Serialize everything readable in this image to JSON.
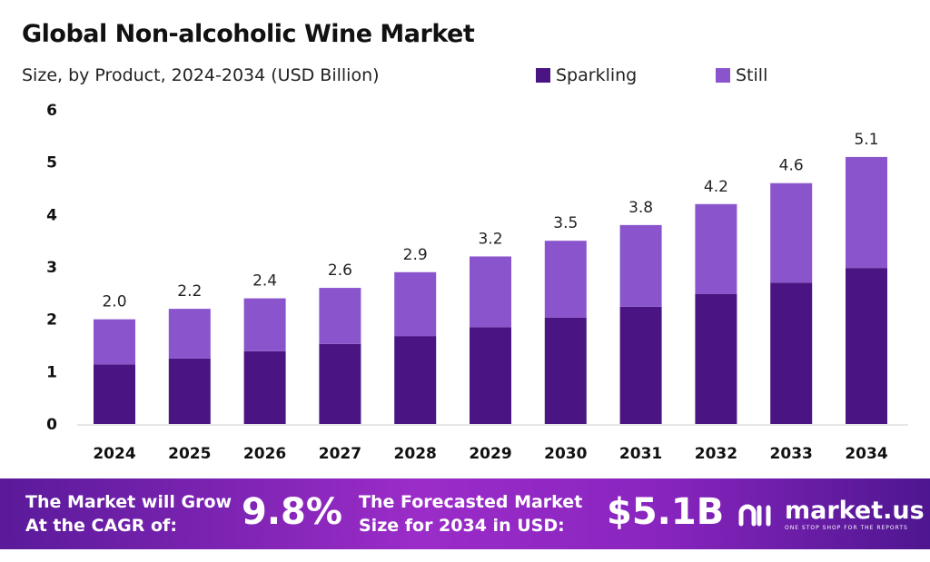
{
  "chart_data": {
    "type": "bar",
    "stacked": true,
    "title": "Global Non-alcoholic Wine Market",
    "subtitle": "Size, by Product, 2024-2034 (USD Billion)",
    "categories": [
      "2024",
      "2025",
      "2026",
      "2027",
      "2028",
      "2029",
      "2030",
      "2031",
      "2032",
      "2033",
      "2034"
    ],
    "series": [
      {
        "name": "Sparkling",
        "color": "#4a1582",
        "values": [
          1.14,
          1.25,
          1.39,
          1.53,
          1.68,
          1.85,
          2.03,
          2.24,
          2.48,
          2.7,
          2.98
        ]
      },
      {
        "name": "Still",
        "color": "#8a55cc",
        "values": [
          0.86,
          0.95,
          1.01,
          1.07,
          1.22,
          1.35,
          1.47,
          1.56,
          1.72,
          1.9,
          2.12
        ]
      }
    ],
    "totals": [
      "2.0",
      "2.2",
      "2.4",
      "2.6",
      "2.9",
      "3.2",
      "3.5",
      "3.8",
      "4.2",
      "4.6",
      "5.1"
    ],
    "yticks": [
      "0",
      "1",
      "2",
      "3",
      "4",
      "5",
      "6"
    ],
    "ylim": [
      0,
      6
    ],
    "grid": false,
    "legend_position": "top-right"
  },
  "footer": {
    "cagr_label_1": "The Market will Grow",
    "cagr_label_2": "At the CAGR of:",
    "cagr_value": "9.8%",
    "forecast_label_1": "The Forecasted Market",
    "forecast_label_2": "Size for 2034 in USD:",
    "forecast_value": "$5.1B",
    "logo_text": "market.us",
    "logo_tagline": "ONE STOP SHOP FOR THE REPORTS"
  }
}
